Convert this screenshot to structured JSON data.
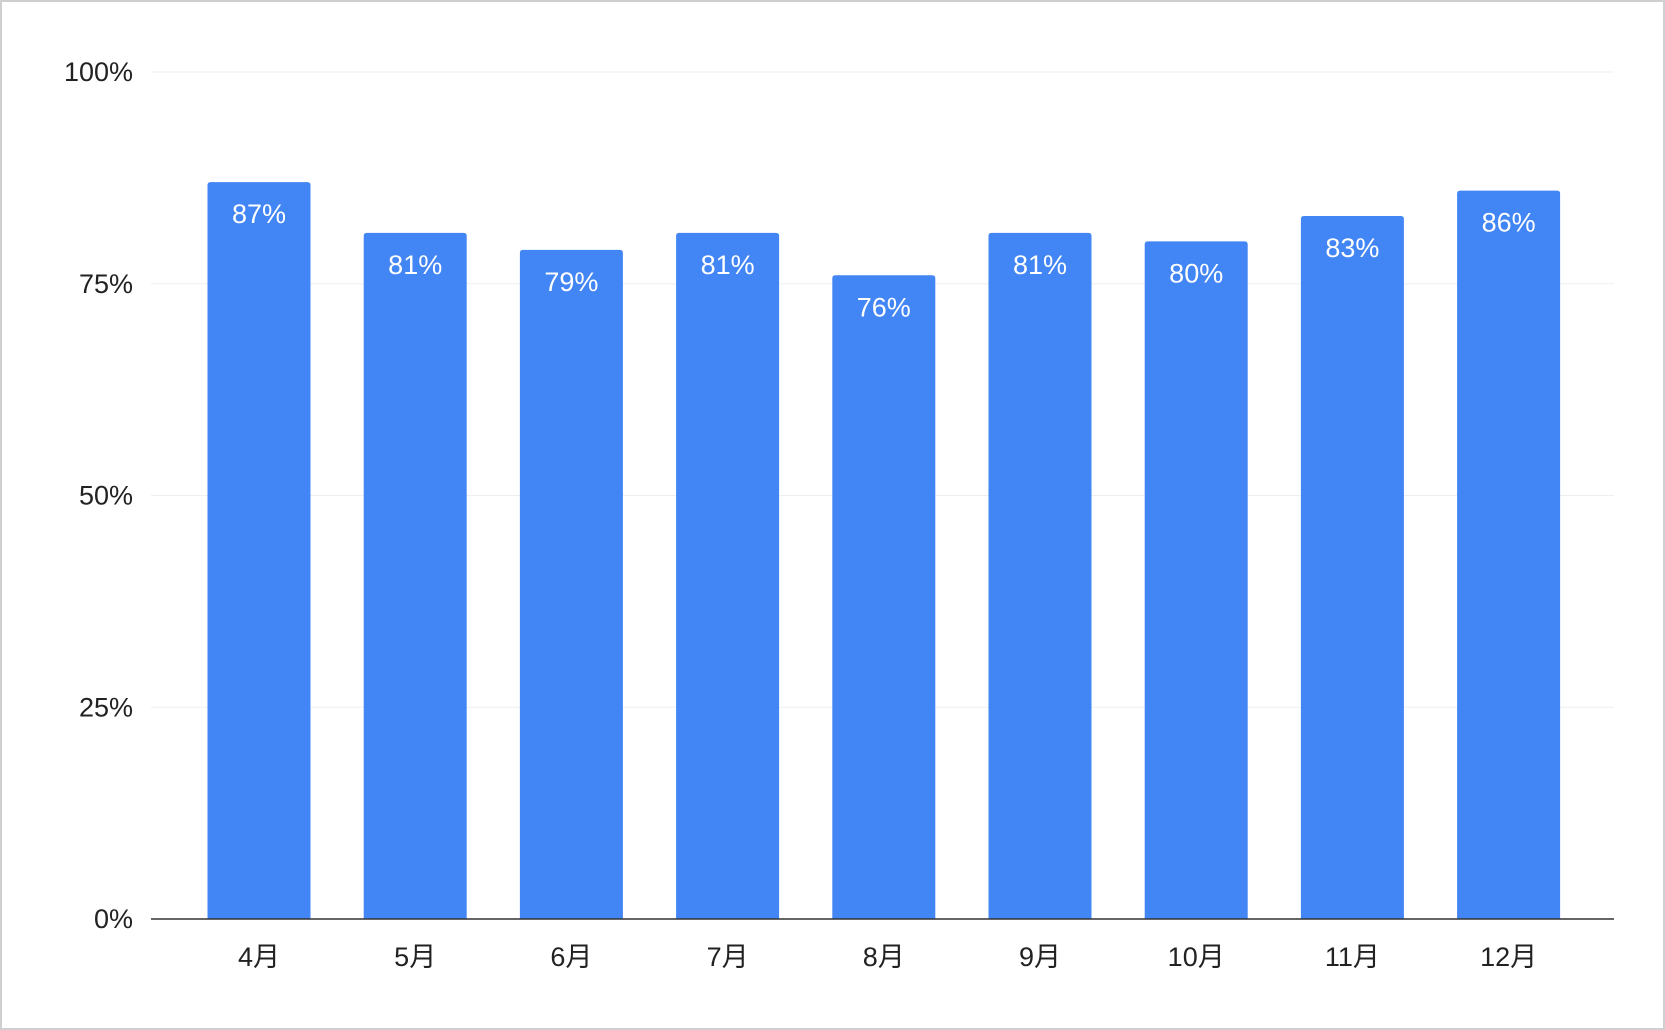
{
  "chart_data": {
    "type": "bar",
    "categories": [
      "4月",
      "5月",
      "6月",
      "7月",
      "8月",
      "9月",
      "10月",
      "11月",
      "12月"
    ],
    "values": [
      87,
      81,
      79,
      81,
      76,
      81,
      80,
      83,
      86
    ],
    "value_labels": [
      "87%",
      "81%",
      "79%",
      "81%",
      "76%",
      "81%",
      "80%",
      "83%",
      "86%"
    ],
    "color": "#4285f4",
    "ylim": [
      0,
      100
    ],
    "yticks": [
      {
        "value": 0,
        "label": "0%"
      },
      {
        "value": 25,
        "label": "25%"
      },
      {
        "value": 50,
        "label": "50%"
      },
      {
        "value": 75,
        "label": "75%"
      },
      {
        "value": 100,
        "label": "100%"
      }
    ],
    "grid": true
  }
}
